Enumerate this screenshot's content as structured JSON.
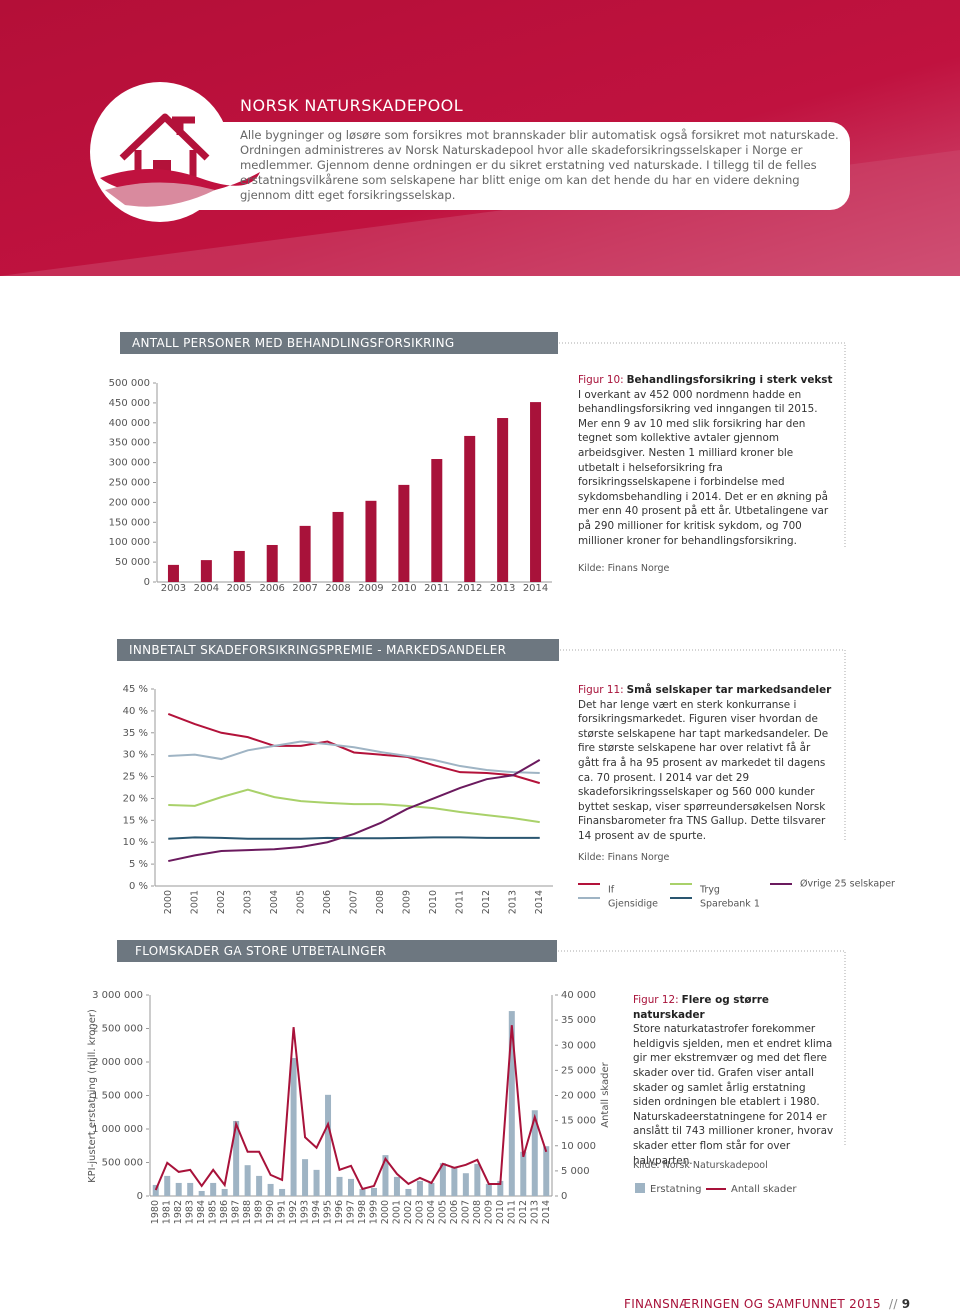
{
  "header": {
    "title": "NORSK NATURSKADEPOOL",
    "text": "Alle bygninger og løsøre som forsikres mot brannskader blir automatisk også forsikret mot naturskade. Ordningen administreres av Norsk Naturskadepool hvor alle skadeforsikringsselskaper i Norge er medlemmer. Gjennom denne ordningen er du sikret erstatning ved naturskade. I tillegg til de felles erstatningsvilkårene som selskapene har blitt enige om kan det hende du har en videre dekning gjennom ditt eget forsikringsselskap."
  },
  "chart_data": [
    {
      "type": "bar",
      "title": "ANTALL PERSONER MED BEHANDLINGSFORSIKRING",
      "color": "#a8123a",
      "categories": [
        "2003",
        "2004",
        "2005",
        "2006",
        "2007",
        "2008",
        "2009",
        "2010",
        "2011",
        "2012",
        "2013",
        "2014"
      ],
      "values": [
        43000,
        55000,
        78000,
        93000,
        141000,
        176000,
        204000,
        244000,
        309000,
        367000,
        412000,
        452000
      ],
      "ylim": [
        0,
        500000
      ],
      "yticks": [
        0,
        {
          "value": 50000,
          "label": "50 000"
        },
        {
          "value": 100000,
          "label": "100 000"
        },
        {
          "value": 150000,
          "label": "150 000"
        },
        {
          "value": 200000,
          "label": "200 000"
        },
        {
          "value": 250000,
          "label": "250 000"
        },
        {
          "value": 300000,
          "label": "300 000"
        },
        {
          "value": 350000,
          "label": "350 000"
        },
        {
          "value": 400000,
          "label": "400 000"
        },
        {
          "value": 450000,
          "label": "450 000"
        },
        {
          "value": 500000,
          "label": "500 000"
        }
      ],
      "grid": false,
      "figure_label": "Figur 10:",
      "figure_title": "Behandlingsforsikring i sterk vekst",
      "description": "I overkant av 452 000 nordmenn hadde en behandlingsforsikring ved inngangen til 2015. Mer enn 9 av 10 med slik forsikring har den tegnet som kollektive avtaler gjennom arbeidsgiver. Nesten 1 milliard kroner ble utbetalt i helseforsikring fra forsikringsselskapene i forbindelse med sykdomsbehandling i 2014. Det er en økning på mer enn 40 prosent på ett år. Utbetalingene var på 290 millioner for kritisk sykdom, og 700 millioner kroner for behandlingsforsikring.",
      "source": "Kilde: Finans Norge"
    },
    {
      "type": "line",
      "title": "INNBETALT SKADEFORSIKRINGSPREMIE - MARKEDSANDELER",
      "categories": [
        "2000",
        "2001",
        "2002",
        "2003",
        "2004",
        "2005",
        "2006",
        "2007",
        "2008",
        "2009",
        "2010",
        "2011",
        "2012",
        "2013",
        "2014"
      ],
      "series": [
        {
          "name": "If",
          "color": "#b3123a",
          "values": [
            39.3,
            37,
            35,
            34,
            32,
            32,
            33,
            30.5,
            30,
            29.5,
            27.6,
            26,
            25.8,
            25.3,
            23.5
          ]
        },
        {
          "name": "Gjensidige",
          "color": "#9fb4c4",
          "values": [
            29.7,
            30,
            29,
            31,
            32,
            33,
            32.4,
            31.7,
            30.6,
            29.7,
            28.8,
            27.4,
            26.5,
            26,
            25.8
          ]
        },
        {
          "name": "Tryg",
          "color": "#a9d16a",
          "values": [
            18.5,
            18.3,
            20.3,
            22,
            20.3,
            19.4,
            19,
            18.7,
            18.7,
            18.3,
            17.8,
            16.9,
            16.2,
            15.5,
            14.6
          ]
        },
        {
          "name": "Sparebank 1",
          "color": "#2a5670",
          "values": [
            10.8,
            11.1,
            11,
            10.8,
            10.8,
            10.8,
            11,
            10.9,
            10.9,
            11,
            11.1,
            11.1,
            11,
            11,
            11
          ]
        },
        {
          "name": "Øvrige 25 selskaper",
          "color": "#6b1a5e",
          "values": [
            5.7,
            7,
            8,
            8.2,
            8.4,
            8.9,
            10,
            11.9,
            14.4,
            17.6,
            20,
            22.4,
            24.4,
            25.3,
            28.8
          ]
        }
      ],
      "ylim": [
        0,
        45
      ],
      "yticks": [
        {
          "value": 0,
          "label": "0 %"
        },
        {
          "value": 5,
          "label": "5 %"
        },
        {
          "value": 10,
          "label": "10 %"
        },
        {
          "value": 15,
          "label": "15 %"
        },
        {
          "value": 20,
          "label": "20 %"
        },
        {
          "value": 25,
          "label": "25 %"
        },
        {
          "value": 30,
          "label": "30 %"
        },
        {
          "value": 35,
          "label": "35 %"
        },
        {
          "value": 40,
          "label": "40 %"
        },
        {
          "value": 45,
          "label": "45 %"
        }
      ],
      "grid": false,
      "figure_label": "Figur 11:",
      "figure_title": "Små selskaper tar markedsandeler",
      "description": "Det har lenge vært en sterk konkurranse i forsikringsmarkedet. Figuren viser hvordan de største selskapene har tapt markedsandeler. De fire største selskapene har over relativt få år gått fra å ha 95 prosent av markedet til dagens ca. 70 prosent. I 2014 var det 29 skadeforsikringsselskaper og 560 000 kunder byttet seskap, viser spørreundersøkelsen Norsk Finansbarometer fra TNS Gallup. Dette tilsvarer 14 prosent av de spurte.",
      "source": "Kilde: Finans Norge"
    },
    {
      "type": "combo",
      "title": "FLOMSKADER GA STORE UTBETALINGER",
      "ylabel": "KPI-justert erstatning (mill. kroner)",
      "y2label": "Antall skader",
      "categories": [
        "1980",
        "1981",
        "1982",
        "1983",
        "1984",
        "1985",
        "1986",
        "1987",
        "1988",
        "1989",
        "1990",
        "1991",
        "1992",
        "1993",
        "1994",
        "1995",
        "1996",
        "1997",
        "1998",
        "1999",
        "2000",
        "2001",
        "2002",
        "2003",
        "2004",
        "2005",
        "2006",
        "2007",
        "2008",
        "2009",
        "2010",
        "2011",
        "2012",
        "2013",
        "2014"
      ],
      "series": [
        {
          "name": "Erstatning",
          "type": "bar",
          "color": "#9fb4c4",
          "values": [
            165000,
            300000,
            195000,
            195000,
            75000,
            195000,
            105000,
            1120000,
            460000,
            300000,
            180000,
            105000,
            2060000,
            550000,
            390000,
            1510000,
            285000,
            255000,
            105000,
            120000,
            610000,
            285000,
            105000,
            225000,
            195000,
            490000,
            430000,
            340000,
            480000,
            180000,
            225000,
            2760000,
            660000,
            1280000,
            743000
          ]
        },
        {
          "name": "Antall skader",
          "type": "line",
          "axis": "y2",
          "color": "#a8123a",
          "values": [
            1200,
            6600,
            4800,
            5200,
            2000,
            5200,
            2200,
            14300,
            8800,
            8800,
            4200,
            3200,
            33600,
            11700,
            9600,
            14300,
            5200,
            6000,
            1400,
            2000,
            7400,
            4400,
            2400,
            3600,
            2600,
            6400,
            5600,
            6200,
            7200,
            2400,
            2400,
            34000,
            7800,
            15700,
            8800
          ]
        }
      ],
      "ylim": [
        0,
        3000000
      ],
      "yticks": [
        0,
        {
          "value": 500000,
          "label": "500 000"
        },
        {
          "value": 1000000,
          "label": "1 000 000"
        },
        {
          "value": 1500000,
          "label": "1 500 000"
        },
        {
          "value": 2000000,
          "label": "2 000 000"
        },
        {
          "value": 2500000,
          "label": "2 500 000"
        },
        {
          "value": 3000000,
          "label": "3 000 000"
        }
      ],
      "y2lim": [
        0,
        40000
      ],
      "y2ticks": [
        0,
        {
          "value": 5000,
          "label": "5 000"
        },
        {
          "value": 10000,
          "label": "10 000"
        },
        {
          "value": 15000,
          "label": "15 000"
        },
        {
          "value": 20000,
          "label": "20 000"
        },
        {
          "value": 25000,
          "label": "25 000"
        },
        {
          "value": 30000,
          "label": "30 000"
        },
        {
          "value": 35000,
          "label": "35 000"
        },
        {
          "value": 40000,
          "label": "40 000"
        }
      ],
      "grid": false,
      "figure_label": "Figur 12:",
      "figure_title": "Flere og større naturskader",
      "description": "Store naturkatastrofer forekommer heldigvis sjelden, men et endret klima gir mer ekstremvær og med det flere skader over tid. Grafen viser antall skader og samlet årlig erstatning siden ordningen ble etablert i 1980. Naturskadeerstatningene for 2014 er anslått til 743 millioner kroner, hvorav skader etter flom står for over halvparten.",
      "source": "Kilde: Norsk Naturskadepool"
    }
  ],
  "footer": {
    "text": "FINANSNÆRINGEN OG SAMFUNNET 2015",
    "separator": "//",
    "page": "9"
  }
}
